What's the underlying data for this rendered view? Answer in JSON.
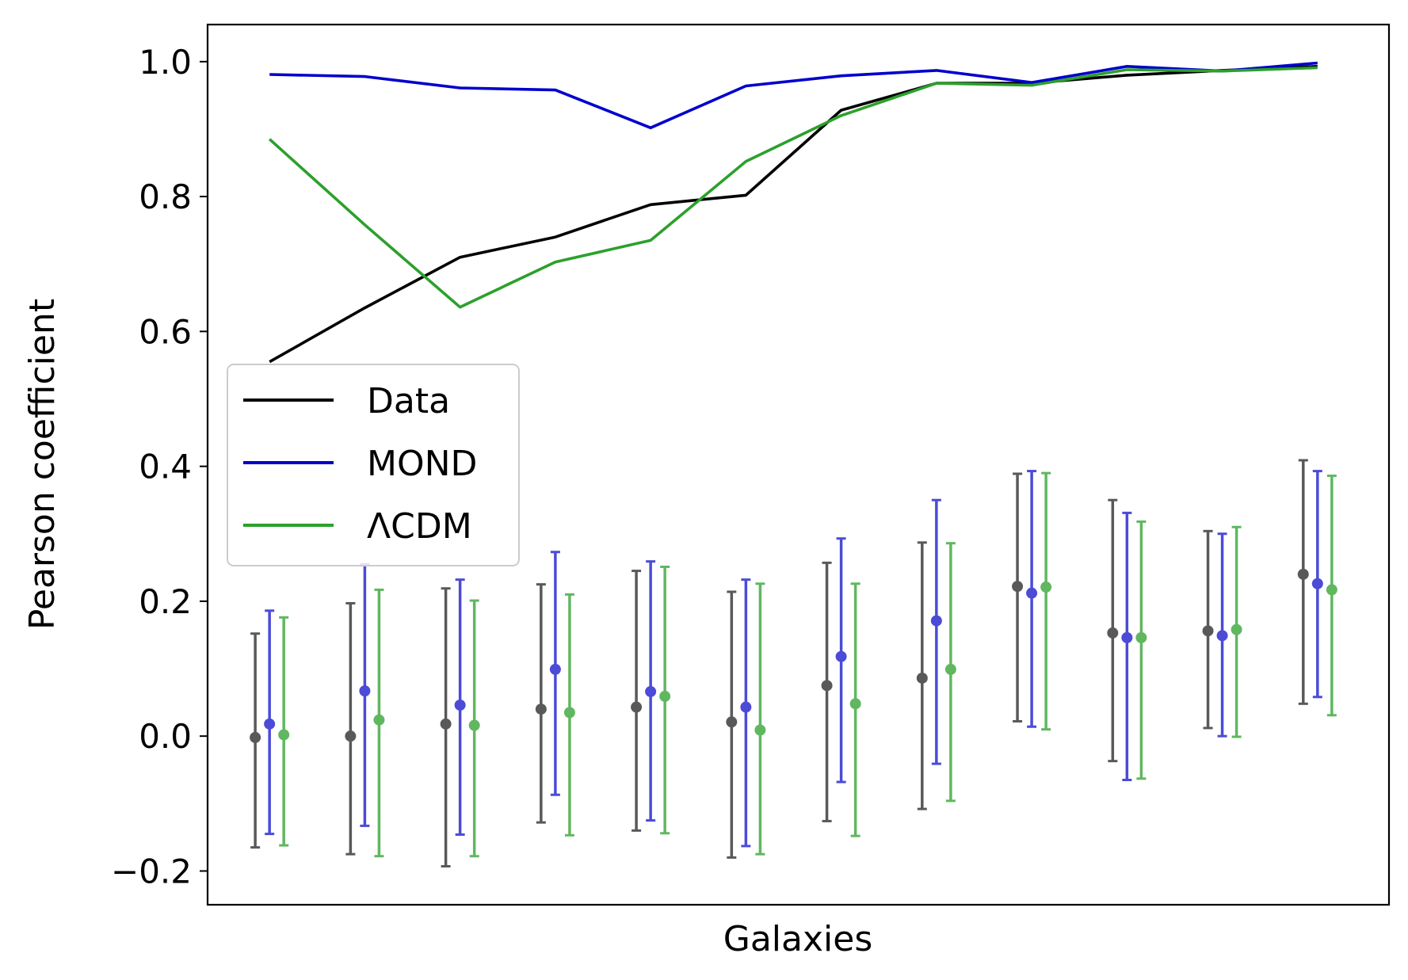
{
  "chart_data": {
    "type": "line",
    "xlabel": "Galaxies",
    "ylabel": "Pearson coefficient",
    "xlim": [
      -0.65,
      11.75
    ],
    "ylim": [
      -0.25,
      1.055
    ],
    "yticks": [
      -0.2,
      0.0,
      0.2,
      0.4,
      0.6,
      0.8,
      1.0
    ],
    "ytick_labels": [
      "−0.2",
      "0.0",
      "0.2",
      "0.4",
      "0.6",
      "0.8",
      "1.0"
    ],
    "grid": false,
    "legend_position": "center-left",
    "x": [
      0,
      1,
      2,
      3,
      4,
      5,
      6,
      7,
      8,
      9,
      10,
      11
    ],
    "series": [
      {
        "name": "Data",
        "color": "#000000",
        "values": [
          0.555,
          0.635,
          0.71,
          0.74,
          0.788,
          0.802,
          0.928,
          0.968,
          0.968,
          0.98,
          0.987,
          0.993
        ]
      },
      {
        "name": "MOND",
        "color": "#0000cc",
        "values": [
          0.981,
          0.978,
          0.961,
          0.958,
          0.902,
          0.964,
          0.979,
          0.987,
          0.969,
          0.993,
          0.986,
          0.998
        ]
      },
      {
        "name": "ΛCDM",
        "color": "#2ca02c",
        "values": [
          0.885,
          0.758,
          0.636,
          0.703,
          0.735,
          0.852,
          0.92,
          0.968,
          0.965,
          0.988,
          0.986,
          0.991
        ]
      }
    ],
    "errorbar_series": [
      {
        "name": "Data",
        "color": "#222222",
        "offset": -0.15,
        "values": [
          -0.002,
          0.0,
          0.018,
          0.04,
          0.043,
          0.021,
          0.075,
          0.086,
          0.222,
          0.153,
          0.156,
          0.24
        ],
        "lower": [
          -0.165,
          -0.175,
          -0.193,
          -0.128,
          -0.14,
          -0.18,
          -0.126,
          -0.108,
          0.022,
          -0.037,
          0.012,
          0.048
        ],
        "upper": [
          0.152,
          0.197,
          0.219,
          0.225,
          0.245,
          0.214,
          0.257,
          0.287,
          0.389,
          0.35,
          0.304,
          0.409
        ]
      },
      {
        "name": "MOND",
        "color": "#1010cc",
        "offset": 0.0,
        "values": [
          0.018,
          0.067,
          0.046,
          0.099,
          0.066,
          0.043,
          0.118,
          0.171,
          0.212,
          0.146,
          0.149,
          0.226
        ],
        "lower": [
          -0.145,
          -0.133,
          -0.146,
          -0.087,
          -0.125,
          -0.163,
          -0.068,
          -0.041,
          0.014,
          -0.065,
          0.0,
          0.058
        ],
        "upper": [
          0.186,
          0.255,
          0.232,
          0.273,
          0.259,
          0.232,
          0.293,
          0.35,
          0.393,
          0.331,
          0.3,
          0.393
        ]
      },
      {
        "name": "ΛCDM",
        "color": "#2ca02c",
        "offset": 0.15,
        "values": [
          0.002,
          0.024,
          0.016,
          0.035,
          0.059,
          0.009,
          0.048,
          0.099,
          0.221,
          0.146,
          0.158,
          0.217
        ],
        "lower": [
          -0.162,
          -0.178,
          -0.178,
          -0.147,
          -0.144,
          -0.175,
          -0.148,
          -0.096,
          0.01,
          -0.063,
          -0.001,
          0.031
        ],
        "upper": [
          0.176,
          0.217,
          0.201,
          0.21,
          0.251,
          0.226,
          0.226,
          0.286,
          0.39,
          0.318,
          0.31,
          0.386
        ]
      }
    ]
  }
}
